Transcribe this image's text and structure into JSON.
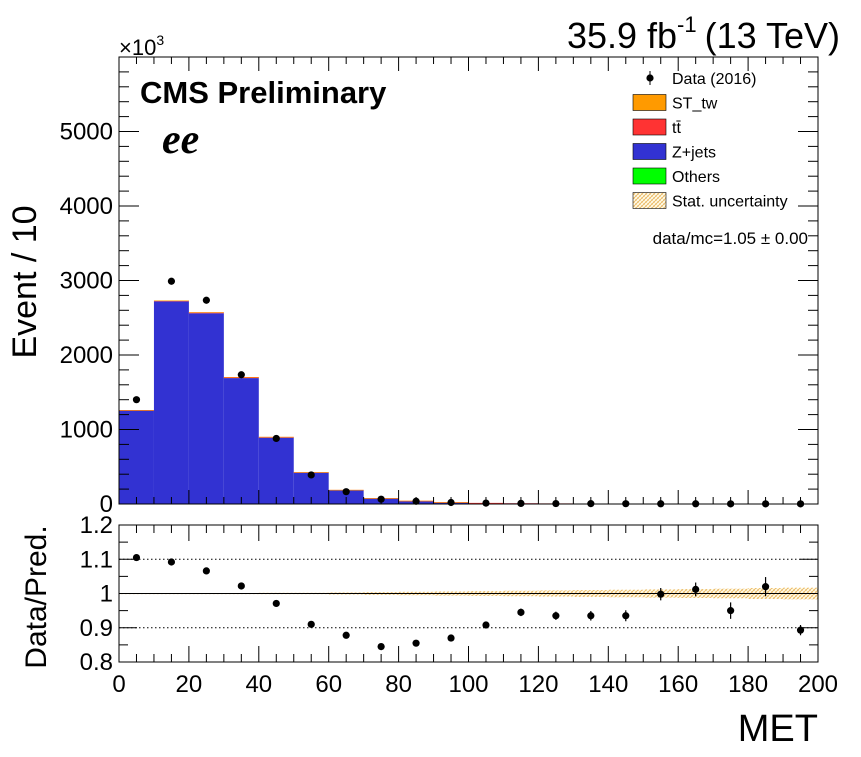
{
  "chart_data": [
    {
      "type": "bar",
      "header_left": "CMS Preliminary",
      "header_channel": "ee",
      "lumi_main": "35.9 fb",
      "lumi_sup": "-1",
      "lumi_energy": "(13 TeV)",
      "ylabel": "Event / 10",
      "y_exponent_prefix": "×10",
      "y_exponent_sup": "3",
      "ylim": [
        0,
        6000
      ],
      "y_ticks": [
        0,
        1000,
        2000,
        3000,
        4000,
        5000
      ],
      "xlim": [
        0,
        200
      ],
      "bin_edges": [
        0,
        10,
        20,
        30,
        40,
        50,
        60,
        70,
        80,
        90,
        100,
        110,
        120,
        130,
        140,
        150,
        160,
        170,
        180,
        190,
        200
      ],
      "stack_order": [
        "Others",
        "Z+jets",
        "tt",
        "ST_tw"
      ],
      "series": [
        {
          "name": "Z+jets",
          "color": "#3232d2",
          "values": [
            1255,
            2720,
            2560,
            1690,
            890,
            420,
            182,
            73,
            38,
            20,
            12,
            8,
            6,
            5,
            4,
            3,
            3,
            2,
            2,
            2
          ]
        },
        {
          "name": "tt",
          "color": "#ff3333",
          "values": [
            5,
            10,
            12,
            12,
            10,
            8,
            7,
            6,
            5,
            4,
            3,
            2,
            2,
            1,
            1,
            1,
            1,
            1,
            1,
            1
          ]
        },
        {
          "name": "ST_tw",
          "color": "#ff9a00",
          "values": [
            1,
            2,
            2,
            2,
            2,
            1,
            1,
            1,
            1,
            1,
            0,
            0,
            0,
            0,
            0,
            0,
            0,
            0,
            0,
            0
          ]
        },
        {
          "name": "Others",
          "color": "#00ff00",
          "values": [
            0,
            0,
            0,
            0,
            0,
            0,
            0,
            0,
            0,
            0,
            0,
            0,
            0,
            0,
            0,
            0,
            0,
            0,
            0,
            0
          ]
        }
      ],
      "data_points": {
        "name": "Data (2016)",
        "x": [
          5,
          15,
          25,
          35,
          45,
          55,
          65,
          75,
          85,
          95,
          105,
          115,
          125,
          135,
          145,
          155,
          165,
          175,
          185,
          195
        ],
        "y": [
          1400,
          2990,
          2735,
          1735,
          880,
          390,
          165,
          64,
          37,
          20,
          12,
          8,
          6,
          5,
          4,
          3,
          3,
          2,
          2,
          2
        ]
      },
      "legend": {
        "placement": "top-right",
        "entries": [
          {
            "label": "Data (2016)",
            "kind": "marker",
            "color": "#000000"
          },
          {
            "label": "ST_tw",
            "kind": "box",
            "color": "#ff9a00"
          },
          {
            "label": "tt̄",
            "kind": "box",
            "color": "#ff3333"
          },
          {
            "label": "Z+jets",
            "kind": "box",
            "color": "#3232d2"
          },
          {
            "label": "Others",
            "kind": "box",
            "color": "#00ff00"
          },
          {
            "label": "Stat. uncertainty",
            "kind": "hatch",
            "color": "#f5c27a"
          }
        ]
      },
      "annotation": "data/mc=1.05 ± 0.00"
    },
    {
      "type": "scatter",
      "ylabel": "Data/Pred.",
      "xlabel": "MET",
      "xlim": [
        0,
        200
      ],
      "ylim": [
        0.8,
        1.2
      ],
      "y_ticks": [
        0.8,
        0.9,
        1.0,
        1.1,
        1.2
      ],
      "y_tick_labels": [
        "0.8",
        "0.9",
        "1",
        "1.1",
        "1.2"
      ],
      "x_ticks": [
        0,
        20,
        40,
        60,
        80,
        100,
        120,
        140,
        160,
        180,
        200
      ],
      "gridlines_y": [
        0.9,
        1.0,
        1.1
      ],
      "x": [
        5,
        15,
        25,
        35,
        45,
        55,
        65,
        75,
        85,
        95,
        105,
        115,
        125,
        135,
        145,
        155,
        165,
        175,
        185,
        195
      ],
      "y": [
        1.105,
        1.092,
        1.066,
        1.022,
        0.971,
        0.91,
        0.878,
        0.845,
        0.855,
        0.87,
        0.908,
        0.945,
        0.935,
        0.935,
        0.935,
        0.998,
        1.012,
        0.95,
        1.02,
        0.893
      ],
      "yerr": [
        0.002,
        0.002,
        0.002,
        0.003,
        0.004,
        0.005,
        0.006,
        0.007,
        0.008,
        0.009,
        0.009,
        0.011,
        0.012,
        0.014,
        0.016,
        0.018,
        0.02,
        0.024,
        0.028,
        0.015
      ],
      "band_halfwidth": [
        0.001,
        0.001,
        0.001,
        0.001,
        0.002,
        0.002,
        0.003,
        0.004,
        0.005,
        0.006,
        0.007,
        0.008,
        0.009,
        0.01,
        0.011,
        0.012,
        0.013,
        0.014,
        0.016,
        0.017
      ]
    }
  ]
}
